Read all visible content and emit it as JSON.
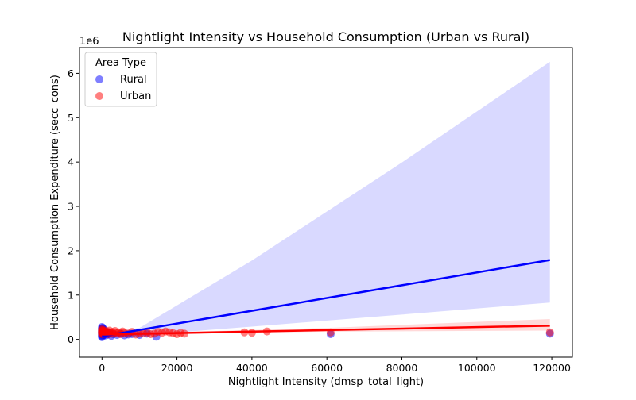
{
  "chart_data": {
    "type": "scatter",
    "title": "Nightlight Intensity vs Household Consumption (Urban vs Rural)",
    "xlabel": "Nightlight Intensity (dmsp_total_light)",
    "ylabel": "Household Consumption Expenditure (secc_cons)",
    "y_offset_label": "1e6",
    "xlim": [
      -6000,
      125500
    ],
    "ylim": [
      -400000,
      6580000
    ],
    "x_ticks": [
      0,
      20000,
      40000,
      60000,
      80000,
      100000,
      120000
    ],
    "x_tick_labels": [
      "0",
      "20000",
      "40000",
      "60000",
      "80000",
      "100000",
      "120000"
    ],
    "y_ticks": [
      0,
      1000000,
      2000000,
      3000000,
      4000000,
      5000000,
      6000000
    ],
    "y_tick_labels": [
      "0",
      "1",
      "2",
      "3",
      "4",
      "5",
      "6"
    ],
    "grid": false,
    "legend": {
      "title": "Area Type",
      "placement": "top-left",
      "entries": [
        "Rural",
        "Urban"
      ]
    },
    "series": [
      {
        "name": "Rural",
        "color": "#0000ff",
        "points": [
          [
            0,
            280000
          ],
          [
            0,
            250000
          ],
          [
            0,
            230000
          ],
          [
            0,
            210000
          ],
          [
            0,
            190000
          ],
          [
            0,
            170000
          ],
          [
            0,
            150000
          ],
          [
            0,
            130000
          ],
          [
            0,
            110000
          ],
          [
            0,
            90000
          ],
          [
            0,
            70000
          ],
          [
            0,
            50000
          ],
          [
            50,
            200000
          ],
          [
            100,
            160000
          ],
          [
            150,
            120000
          ],
          [
            200,
            260000
          ],
          [
            300,
            180000
          ],
          [
            400,
            140000
          ],
          [
            500,
            100000
          ],
          [
            600,
            220000
          ],
          [
            800,
            130000
          ],
          [
            1000,
            90000
          ],
          [
            1200,
            160000
          ],
          [
            1500,
            110000
          ],
          [
            2000,
            140000
          ],
          [
            2500,
            80000
          ],
          [
            3000,
            120000
          ],
          [
            4000,
            100000
          ],
          [
            5000,
            130000
          ],
          [
            6000,
            90000
          ],
          [
            7000,
            110000
          ],
          [
            8000,
            120000
          ],
          [
            10000,
            100000
          ],
          [
            12000,
            130000
          ],
          [
            14500,
            60000
          ],
          [
            61000,
            120000
          ],
          [
            119500,
            130000
          ]
        ],
        "regression": {
          "x0": 0,
          "y0": 70000,
          "x1": 119500,
          "y1": 1790000
        },
        "ci_band": {
          "lower": [
            [
              0,
              40000
            ],
            [
              10000,
              90000
            ],
            [
              40000,
              290000
            ],
            [
              80000,
              560000
            ],
            [
              119500,
              830000
            ]
          ],
          "upper": [
            [
              0,
              130000
            ],
            [
              10000,
              260000
            ],
            [
              40000,
              1780000
            ],
            [
              80000,
              3990000
            ],
            [
              119500,
              6260000
            ]
          ]
        }
      },
      {
        "name": "Urban",
        "color": "#ff0000",
        "points": [
          [
            0,
            230000
          ],
          [
            0,
            200000
          ],
          [
            0,
            180000
          ],
          [
            0,
            160000
          ],
          [
            0,
            140000
          ],
          [
            0,
            120000
          ],
          [
            100,
            210000
          ],
          [
            200,
            190000
          ],
          [
            300,
            170000
          ],
          [
            400,
            150000
          ],
          [
            500,
            130000
          ],
          [
            700,
            200000
          ],
          [
            900,
            160000
          ],
          [
            1100,
            140000
          ],
          [
            1400,
            180000
          ],
          [
            1700,
            120000
          ],
          [
            2000,
            200000
          ],
          [
            2300,
            150000
          ],
          [
            2700,
            170000
          ],
          [
            3000,
            130000
          ],
          [
            3500,
            190000
          ],
          [
            4000,
            140000
          ],
          [
            4500,
            160000
          ],
          [
            5000,
            120000
          ],
          [
            5500,
            180000
          ],
          [
            6000,
            150000
          ],
          [
            7000,
            130000
          ],
          [
            8000,
            170000
          ],
          [
            9000,
            110000
          ],
          [
            10000,
            150000
          ],
          [
            11000,
            140000
          ],
          [
            12000,
            160000
          ],
          [
            13000,
            120000
          ],
          [
            14000,
            130000
          ],
          [
            15000,
            170000
          ],
          [
            16000,
            150000
          ],
          [
            17000,
            180000
          ],
          [
            18000,
            160000
          ],
          [
            19000,
            140000
          ],
          [
            20000,
            120000
          ],
          [
            21000,
            150000
          ],
          [
            22000,
            130000
          ],
          [
            38000,
            160000
          ],
          [
            40000,
            150000
          ],
          [
            44000,
            180000
          ],
          [
            61000,
            160000
          ],
          [
            119500,
            160000
          ]
        ],
        "regression": {
          "x0": 0,
          "y0": 110000,
          "x1": 119500,
          "y1": 310000
        },
        "ci_band": {
          "lower": [
            [
              0,
              90000
            ],
            [
              20000,
              130000
            ],
            [
              60000,
              175000
            ],
            [
              119500,
              200000
            ]
          ],
          "upper": [
            [
              0,
              130000
            ],
            [
              20000,
              165000
            ],
            [
              60000,
              260000
            ],
            [
              119500,
              460000
            ]
          ]
        }
      }
    ]
  }
}
